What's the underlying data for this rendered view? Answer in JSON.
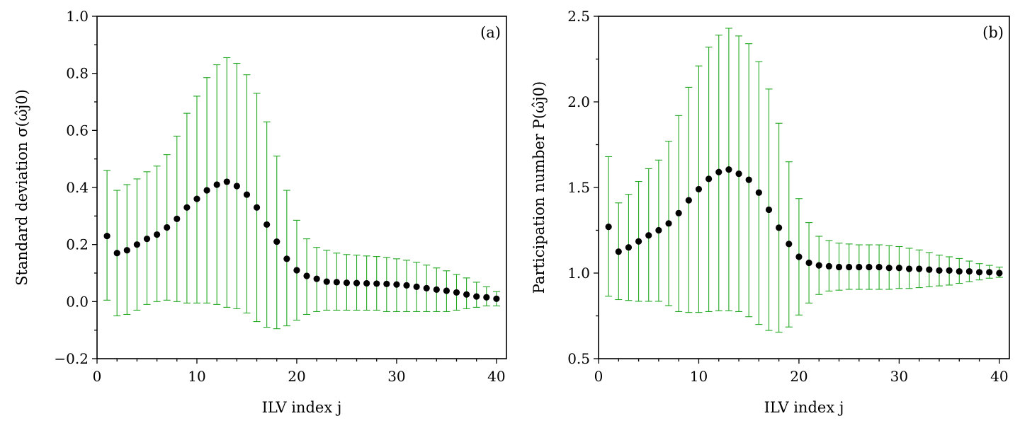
{
  "chart_data": [
    {
      "type": "scatter",
      "panel_label": "(a)",
      "xlabel": "ILV index j",
      "ylabel": "Standard deviation σ(ω̂j0)",
      "xlim": [
        0,
        41
      ],
      "ylim": [
        -0.2,
        1.0
      ],
      "xticks": [
        0,
        10,
        20,
        30,
        40
      ],
      "xtick_labels": [
        "0",
        "10",
        "20",
        "30",
        "40"
      ],
      "yticks": [
        -0.2,
        0.0,
        0.2,
        0.4,
        0.6,
        0.8,
        1.0
      ],
      "ytick_labels": [
        "−0.2",
        "0.0",
        "0.2",
        "0.4",
        "0.6",
        "0.8",
        "1.0"
      ],
      "marker_color": "#000000",
      "errorbar_color": "#22a822",
      "x": [
        1,
        2,
        3,
        4,
        5,
        6,
        7,
        8,
        9,
        10,
        11,
        12,
        13,
        14,
        15,
        16,
        17,
        18,
        19,
        20,
        21,
        22,
        23,
        24,
        25,
        26,
        27,
        28,
        29,
        30,
        31,
        32,
        33,
        34,
        35,
        36,
        37,
        38,
        39,
        40
      ],
      "y": [
        0.23,
        0.17,
        0.18,
        0.2,
        0.22,
        0.235,
        0.26,
        0.29,
        0.33,
        0.36,
        0.39,
        0.41,
        0.42,
        0.405,
        0.375,
        0.33,
        0.27,
        0.21,
        0.15,
        0.11,
        0.09,
        0.08,
        0.07,
        0.068,
        0.066,
        0.065,
        0.064,
        0.063,
        0.062,
        0.06,
        0.057,
        0.052,
        0.047,
        0.042,
        0.038,
        0.032,
        0.025,
        0.018,
        0.015,
        0.01
      ],
      "err_low": [
        0.005,
        -0.05,
        -0.045,
        -0.03,
        -0.01,
        0.0,
        0.005,
        0.0,
        -0.005,
        -0.005,
        -0.005,
        -0.01,
        -0.02,
        -0.025,
        -0.04,
        -0.07,
        -0.09,
        -0.095,
        -0.085,
        -0.065,
        -0.045,
        -0.035,
        -0.03,
        -0.03,
        -0.03,
        -0.03,
        -0.03,
        -0.03,
        -0.035,
        -0.035,
        -0.035,
        -0.035,
        -0.035,
        -0.035,
        -0.035,
        -0.03,
        -0.025,
        -0.02,
        -0.015,
        -0.015
      ],
      "err_high": [
        0.46,
        0.39,
        0.41,
        0.43,
        0.455,
        0.475,
        0.515,
        0.58,
        0.66,
        0.72,
        0.785,
        0.83,
        0.855,
        0.835,
        0.795,
        0.73,
        0.63,
        0.51,
        0.39,
        0.285,
        0.22,
        0.19,
        0.18,
        0.17,
        0.165,
        0.163,
        0.16,
        0.158,
        0.155,
        0.15,
        0.145,
        0.138,
        0.128,
        0.118,
        0.108,
        0.095,
        0.083,
        0.068,
        0.052,
        0.035
      ]
    },
    {
      "type": "scatter",
      "panel_label": "(b)",
      "xlabel": "ILV index j",
      "ylabel": "Participation number P(ω̂j0)",
      "xlim": [
        0,
        41
      ],
      "ylim": [
        0.5,
        2.5
      ],
      "xticks": [
        0,
        10,
        20,
        30,
        40
      ],
      "xtick_labels": [
        "0",
        "10",
        "20",
        "30",
        "40"
      ],
      "yticks": [
        0.5,
        1.0,
        1.5,
        2.0,
        2.5
      ],
      "ytick_labels": [
        "0.5",
        "1.0",
        "1.5",
        "2.0",
        "2.5"
      ],
      "marker_color": "#000000",
      "errorbar_color": "#22a822",
      "x": [
        1,
        2,
        3,
        4,
        5,
        6,
        7,
        8,
        9,
        10,
        11,
        12,
        13,
        14,
        15,
        16,
        17,
        18,
        19,
        20,
        21,
        22,
        23,
        24,
        25,
        26,
        27,
        28,
        29,
        30,
        31,
        32,
        33,
        34,
        35,
        36,
        37,
        38,
        39,
        40
      ],
      "y": [
        1.27,
        1.125,
        1.15,
        1.185,
        1.22,
        1.25,
        1.29,
        1.35,
        1.425,
        1.49,
        1.55,
        1.59,
        1.605,
        1.58,
        1.545,
        1.47,
        1.37,
        1.265,
        1.17,
        1.095,
        1.06,
        1.045,
        1.04,
        1.035,
        1.035,
        1.035,
        1.035,
        1.035,
        1.03,
        1.03,
        1.025,
        1.025,
        1.02,
        1.015,
        1.015,
        1.01,
        1.01,
        1.005,
        1.005,
        1.0
      ],
      "err_low": [
        0.865,
        0.845,
        0.84,
        0.835,
        0.835,
        0.835,
        0.81,
        0.775,
        0.77,
        0.77,
        0.775,
        0.78,
        0.78,
        0.775,
        0.745,
        0.7,
        0.665,
        0.655,
        0.685,
        0.755,
        0.825,
        0.875,
        0.895,
        0.9,
        0.905,
        0.905,
        0.905,
        0.905,
        0.905,
        0.91,
        0.91,
        0.915,
        0.92,
        0.925,
        0.93,
        0.94,
        0.95,
        0.96,
        0.97,
        0.975
      ],
      "err_high": [
        1.68,
        1.41,
        1.46,
        1.535,
        1.61,
        1.66,
        1.77,
        1.92,
        2.085,
        2.21,
        2.32,
        2.39,
        2.43,
        2.385,
        2.34,
        2.235,
        2.075,
        1.875,
        1.65,
        1.435,
        1.295,
        1.215,
        1.19,
        1.175,
        1.17,
        1.165,
        1.165,
        1.165,
        1.16,
        1.155,
        1.145,
        1.135,
        1.12,
        1.105,
        1.095,
        1.085,
        1.07,
        1.055,
        1.045,
        1.035
      ]
    }
  ]
}
